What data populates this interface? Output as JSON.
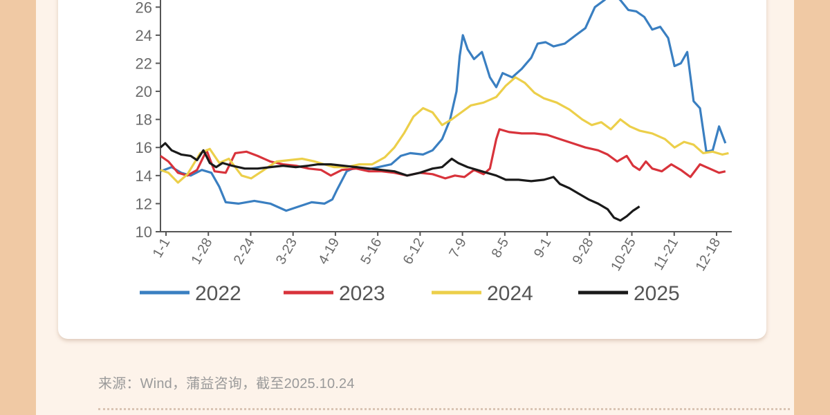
{
  "source_text": "来源：Wind，蒲益咨询，截至2025.10.24",
  "chart_data": {
    "type": "line",
    "title": "",
    "xlabel": "",
    "ylabel": "",
    "x_ticks": [
      "1-1",
      "1-28",
      "2-24",
      "3-23",
      "4-19",
      "5-16",
      "6-12",
      "7-9",
      "8-5",
      "9-1",
      "9-28",
      "10-25",
      "11-21",
      "12-18"
    ],
    "y_ticks": [
      10,
      12,
      14,
      16,
      18,
      20,
      22,
      24,
      26
    ],
    "ylim": [
      10,
      27
    ],
    "xlim": [
      1,
      360
    ],
    "x_unit": "day of year",
    "legend_position": "bottom",
    "grid": false,
    "series": [
      {
        "name": "2022",
        "color": "#3a7fc1",
        "points": [
          [
            1,
            14.3
          ],
          [
            8,
            14.6
          ],
          [
            14,
            14.2
          ],
          [
            20,
            14.0
          ],
          [
            27,
            14.4
          ],
          [
            33,
            14.2
          ],
          [
            38,
            13.2
          ],
          [
            42,
            12.1
          ],
          [
            50,
            12.0
          ],
          [
            60,
            12.2
          ],
          [
            70,
            12.0
          ],
          [
            80,
            11.5
          ],
          [
            88,
            11.8
          ],
          [
            96,
            12.1
          ],
          [
            104,
            12.0
          ],
          [
            109,
            12.3
          ],
          [
            112,
            13.0
          ],
          [
            118,
            14.3
          ],
          [
            124,
            14.6
          ],
          [
            130,
            14.4
          ],
          [
            138,
            14.6
          ],
          [
            146,
            14.8
          ],
          [
            152,
            15.4
          ],
          [
            158,
            15.6
          ],
          [
            166,
            15.5
          ],
          [
            172,
            15.8
          ],
          [
            178,
            16.6
          ],
          [
            183,
            18.0
          ],
          [
            187,
            20.0
          ],
          [
            189,
            22.5
          ],
          [
            191,
            24.0
          ],
          [
            194,
            23.0
          ],
          [
            198,
            22.3
          ],
          [
            203,
            22.8
          ],
          [
            208,
            21.0
          ],
          [
            212,
            20.3
          ],
          [
            216,
            21.3
          ],
          [
            222,
            21.0
          ],
          [
            228,
            21.6
          ],
          [
            234,
            22.4
          ],
          [
            238,
            23.4
          ],
          [
            243,
            23.5
          ],
          [
            248,
            23.2
          ],
          [
            255,
            23.4
          ],
          [
            262,
            24.0
          ],
          [
            268,
            24.5
          ],
          [
            274,
            26.0
          ],
          [
            280,
            26.5
          ],
          [
            285,
            27.0
          ],
          [
            290,
            26.5
          ],
          [
            295,
            25.8
          ],
          [
            300,
            25.7
          ],
          [
            305,
            25.3
          ],
          [
            310,
            24.4
          ],
          [
            315,
            24.6
          ],
          [
            320,
            23.8
          ],
          [
            324,
            21.8
          ],
          [
            328,
            22.0
          ],
          [
            332,
            22.8
          ],
          [
            336,
            19.3
          ],
          [
            340,
            18.8
          ],
          [
            344,
            15.7
          ],
          [
            348,
            15.8
          ],
          [
            352,
            17.5
          ],
          [
            356,
            16.3
          ]
        ]
      },
      {
        "name": "2023",
        "color": "#d8333b",
        "points": [
          [
            1,
            15.4
          ],
          [
            6,
            15.0
          ],
          [
            12,
            14.2
          ],
          [
            18,
            14.0
          ],
          [
            24,
            14.4
          ],
          [
            30,
            15.8
          ],
          [
            35,
            14.3
          ],
          [
            42,
            14.2
          ],
          [
            48,
            15.6
          ],
          [
            55,
            15.7
          ],
          [
            62,
            15.4
          ],
          [
            70,
            15.0
          ],
          [
            78,
            14.8
          ],
          [
            86,
            14.7
          ],
          [
            94,
            14.5
          ],
          [
            102,
            14.4
          ],
          [
            108,
            14.0
          ],
          [
            115,
            14.4
          ],
          [
            124,
            14.5
          ],
          [
            132,
            14.3
          ],
          [
            140,
            14.3
          ],
          [
            148,
            14.2
          ],
          [
            156,
            14.0
          ],
          [
            164,
            14.2
          ],
          [
            172,
            14.1
          ],
          [
            180,
            13.8
          ],
          [
            186,
            14.0
          ],
          [
            192,
            13.9
          ],
          [
            198,
            14.4
          ],
          [
            204,
            14.1
          ],
          [
            208,
            14.5
          ],
          [
            212,
            16.6
          ],
          [
            214,
            17.3
          ],
          [
            220,
            17.1
          ],
          [
            228,
            17.0
          ],
          [
            236,
            17.0
          ],
          [
            244,
            16.9
          ],
          [
            252,
            16.6
          ],
          [
            260,
            16.3
          ],
          [
            268,
            16.0
          ],
          [
            276,
            15.8
          ],
          [
            282,
            15.5
          ],
          [
            288,
            15.0
          ],
          [
            294,
            15.4
          ],
          [
            298,
            14.7
          ],
          [
            302,
            14.4
          ],
          [
            306,
            15.0
          ],
          [
            310,
            14.5
          ],
          [
            316,
            14.3
          ],
          [
            322,
            14.8
          ],
          [
            328,
            14.4
          ],
          [
            334,
            13.9
          ],
          [
            340,
            14.8
          ],
          [
            346,
            14.5
          ],
          [
            352,
            14.2
          ],
          [
            356,
            14.3
          ]
        ]
      },
      {
        "name": "2024",
        "color": "#eccf4a",
        "points": [
          [
            1,
            14.4
          ],
          [
            6,
            14.2
          ],
          [
            12,
            13.5
          ],
          [
            18,
            14.1
          ],
          [
            26,
            15.6
          ],
          [
            32,
            15.9
          ],
          [
            38,
            14.9
          ],
          [
            44,
            15.2
          ],
          [
            52,
            14.0
          ],
          [
            58,
            13.8
          ],
          [
            66,
            14.4
          ],
          [
            74,
            15.0
          ],
          [
            82,
            15.1
          ],
          [
            90,
            15.2
          ],
          [
            98,
            15.0
          ],
          [
            104,
            14.8
          ],
          [
            110,
            14.6
          ],
          [
            118,
            14.6
          ],
          [
            126,
            14.8
          ],
          [
            134,
            14.8
          ],
          [
            142,
            15.3
          ],
          [
            148,
            16.0
          ],
          [
            154,
            17.0
          ],
          [
            160,
            18.2
          ],
          [
            166,
            18.8
          ],
          [
            172,
            18.5
          ],
          [
            178,
            17.6
          ],
          [
            184,
            18.0
          ],
          [
            190,
            18.5
          ],
          [
            196,
            19.0
          ],
          [
            204,
            19.2
          ],
          [
            212,
            19.6
          ],
          [
            218,
            20.4
          ],
          [
            224,
            21.0
          ],
          [
            230,
            20.6
          ],
          [
            236,
            19.9
          ],
          [
            242,
            19.5
          ],
          [
            250,
            19.2
          ],
          [
            258,
            18.7
          ],
          [
            266,
            18.0
          ],
          [
            272,
            17.6
          ],
          [
            278,
            17.8
          ],
          [
            284,
            17.3
          ],
          [
            290,
            18.0
          ],
          [
            296,
            17.5
          ],
          [
            302,
            17.2
          ],
          [
            310,
            17.0
          ],
          [
            318,
            16.6
          ],
          [
            324,
            16.0
          ],
          [
            330,
            16.4
          ],
          [
            336,
            16.2
          ],
          [
            342,
            15.6
          ],
          [
            348,
            15.7
          ],
          [
            354,
            15.5
          ],
          [
            358,
            15.6
          ]
        ]
      },
      {
        "name": "2025",
        "color": "#1a1a1a",
        "points": [
          [
            1,
            16.0
          ],
          [
            4,
            16.3
          ],
          [
            8,
            15.8
          ],
          [
            14,
            15.5
          ],
          [
            20,
            15.4
          ],
          [
            24,
            15.1
          ],
          [
            28,
            15.8
          ],
          [
            32,
            14.9
          ],
          [
            36,
            14.6
          ],
          [
            40,
            14.9
          ],
          [
            46,
            14.7
          ],
          [
            54,
            14.5
          ],
          [
            62,
            14.5
          ],
          [
            70,
            14.6
          ],
          [
            78,
            14.7
          ],
          [
            86,
            14.6
          ],
          [
            94,
            14.7
          ],
          [
            100,
            14.8
          ],
          [
            108,
            14.8
          ],
          [
            116,
            14.7
          ],
          [
            124,
            14.6
          ],
          [
            132,
            14.5
          ],
          [
            140,
            14.4
          ],
          [
            148,
            14.3
          ],
          [
            156,
            14.0
          ],
          [
            164,
            14.2
          ],
          [
            172,
            14.5
          ],
          [
            178,
            14.6
          ],
          [
            184,
            15.2
          ],
          [
            188,
            14.9
          ],
          [
            194,
            14.6
          ],
          [
            200,
            14.4
          ],
          [
            206,
            14.2
          ],
          [
            212,
            14.0
          ],
          [
            218,
            13.7
          ],
          [
            226,
            13.7
          ],
          [
            234,
            13.6
          ],
          [
            242,
            13.7
          ],
          [
            248,
            13.9
          ],
          [
            252,
            13.4
          ],
          [
            258,
            13.1
          ],
          [
            264,
            12.7
          ],
          [
            270,
            12.3
          ],
          [
            276,
            12.0
          ],
          [
            282,
            11.6
          ],
          [
            286,
            11.0
          ],
          [
            290,
            10.8
          ],
          [
            294,
            11.1
          ],
          [
            298,
            11.5
          ],
          [
            302,
            11.8
          ]
        ]
      }
    ]
  }
}
